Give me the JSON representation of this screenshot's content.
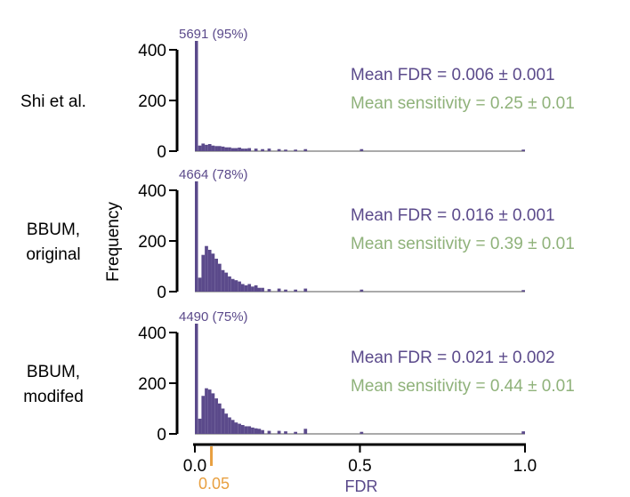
{
  "chart_data": {
    "type": "bar",
    "ylabel": "Frequency",
    "xlabel": "FDR",
    "xlim": [
      0,
      1
    ],
    "ylim": [
      0,
      400
    ],
    "xticks": [
      "0.0",
      "0.5",
      "1.0"
    ],
    "yticks": [
      "0",
      "200",
      "400"
    ],
    "threshold_marker": {
      "value": 0.05,
      "label": "0.05",
      "color": "#e8a040"
    },
    "colors": {
      "bars": "#5b4a8b",
      "fdr_text": "#5b4a8b",
      "sensitivity_text": "#8fb27a"
    },
    "bin_width": 0.01,
    "panels": [
      {
        "row_label": [
          "Shi et al."
        ],
        "first_bin_label": "5691 (95%)",
        "mean_fdr": "Mean FDR = 0.006 ± 0.001",
        "mean_sensitivity": "Mean sensitivity = 0.25 ± 0.01",
        "bin_lefts": [
          0.0,
          0.01,
          0.02,
          0.03,
          0.04,
          0.05,
          0.06,
          0.07,
          0.08,
          0.09,
          0.1,
          0.11,
          0.12,
          0.13,
          0.14,
          0.15,
          0.16,
          0.18,
          0.2,
          0.22,
          0.25,
          0.27,
          0.3,
          0.33,
          0.5,
          0.99
        ],
        "values": [
          5691,
          22,
          30,
          25,
          28,
          22,
          20,
          20,
          18,
          15,
          15,
          12,
          12,
          14,
          10,
          10,
          12,
          10,
          8,
          10,
          8,
          6,
          6,
          8,
          8,
          6
        ]
      },
      {
        "row_label": [
          "BBUM,",
          "original"
        ],
        "first_bin_label": "4664 (78%)",
        "mean_fdr": "Mean FDR = 0.016 ± 0.001",
        "mean_sensitivity": "Mean sensitivity = 0.39 ± 0.01",
        "bin_lefts": [
          0.0,
          0.01,
          0.02,
          0.03,
          0.04,
          0.05,
          0.06,
          0.07,
          0.08,
          0.09,
          0.1,
          0.11,
          0.12,
          0.13,
          0.14,
          0.15,
          0.16,
          0.17,
          0.18,
          0.19,
          0.2,
          0.22,
          0.25,
          0.27,
          0.3,
          0.33,
          0.5,
          0.99
        ],
        "values": [
          4664,
          55,
          145,
          180,
          165,
          150,
          130,
          110,
          85,
          75,
          60,
          50,
          45,
          40,
          30,
          25,
          30,
          20,
          25,
          15,
          15,
          10,
          12,
          8,
          8,
          12,
          8,
          6
        ]
      },
      {
        "row_label": [
          "BBUM,",
          "modifed"
        ],
        "first_bin_label": "4490 (75%)",
        "mean_fdr": "Mean FDR = 0.021 ± 0.002",
        "mean_sensitivity": "Mean sensitivity = 0.44 ± 0.01",
        "bin_lefts": [
          0.0,
          0.01,
          0.02,
          0.03,
          0.04,
          0.05,
          0.06,
          0.07,
          0.08,
          0.09,
          0.1,
          0.11,
          0.12,
          0.13,
          0.14,
          0.15,
          0.16,
          0.17,
          0.18,
          0.19,
          0.2,
          0.22,
          0.25,
          0.27,
          0.3,
          0.33,
          0.5,
          0.99
        ],
        "values": [
          4490,
          60,
          150,
          180,
          175,
          160,
          140,
          120,
          100,
          80,
          65,
          55,
          45,
          40,
          35,
          30,
          30,
          25,
          22,
          20,
          15,
          12,
          12,
          10,
          8,
          20,
          8,
          10
        ]
      }
    ]
  }
}
